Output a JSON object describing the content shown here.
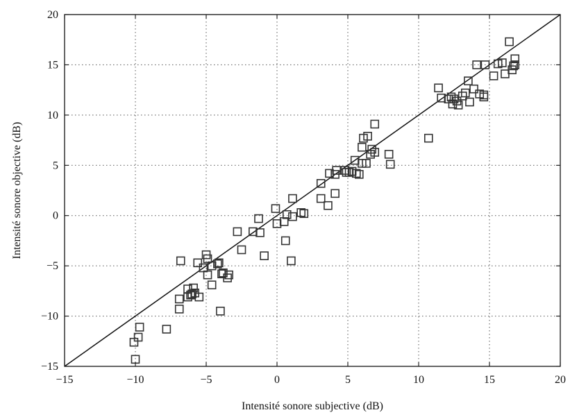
{
  "chart_data": {
    "type": "scatter",
    "title": "",
    "xlabel": "Intensité sonore subjective (dB)",
    "ylabel": "Intensité sonore objective (dB)",
    "xlim": [
      -15,
      20
    ],
    "ylim": [
      -15,
      20
    ],
    "xticks": [
      -15,
      -10,
      -5,
      0,
      5,
      10,
      15,
      20
    ],
    "yticks": [
      -15,
      -10,
      -5,
      0,
      5,
      10,
      15,
      20
    ],
    "xtick_labels": [
      "−15",
      "−10",
      "−5",
      "0",
      "5",
      "10",
      "15",
      "20"
    ],
    "ytick_labels": [
      "−15",
      "−10",
      "−5",
      "0",
      "5",
      "10",
      "15",
      "20"
    ],
    "grid": true,
    "marker": "square",
    "reference_line": {
      "from": [
        -15,
        -15
      ],
      "to": [
        20,
        20
      ]
    },
    "points": [
      [
        -10.0,
        -14.3
      ],
      [
        -10.1,
        -12.6
      ],
      [
        -9.7,
        -11.1
      ],
      [
        -9.8,
        -12.1
      ],
      [
        -7.8,
        -11.3
      ],
      [
        -6.9,
        -9.3
      ],
      [
        -6.9,
        -8.3
      ],
      [
        -6.8,
        -4.5
      ],
      [
        -6.3,
        -7.3
      ],
      [
        -6.3,
        -8.1
      ],
      [
        -6.1,
        -7.9
      ],
      [
        -6.0,
        -7.8
      ],
      [
        -5.9,
        -7.2
      ],
      [
        -5.8,
        -7.7
      ],
      [
        -5.5,
        -8.1
      ],
      [
        -5.6,
        -4.7
      ],
      [
        -5.2,
        -5.2
      ],
      [
        -5.0,
        -3.9
      ],
      [
        -4.9,
        -4.3
      ],
      [
        -4.9,
        -5.9
      ],
      [
        -4.6,
        -6.9
      ],
      [
        -4.6,
        -5.0
      ],
      [
        -4.2,
        -4.8
      ],
      [
        -4.1,
        -4.7
      ],
      [
        -3.9,
        -5.8
      ],
      [
        -3.8,
        -5.7
      ],
      [
        -4.0,
        -9.5
      ],
      [
        -3.5,
        -6.2
      ],
      [
        -3.4,
        -5.9
      ],
      [
        -2.8,
        -1.6
      ],
      [
        -2.5,
        -3.4
      ],
      [
        -1.7,
        -1.6
      ],
      [
        -1.3,
        -0.3
      ],
      [
        -1.2,
        -1.7
      ],
      [
        -0.9,
        -4.0
      ],
      [
        -0.1,
        0.7
      ],
      [
        0.0,
        -0.8
      ],
      [
        0.5,
        -0.6
      ],
      [
        0.6,
        -2.5
      ],
      [
        0.7,
        0.1
      ],
      [
        1.0,
        -4.5
      ],
      [
        1.1,
        1.7
      ],
      [
        1.1,
        -0.1
      ],
      [
        1.7,
        0.3
      ],
      [
        1.9,
        0.2
      ],
      [
        3.1,
        1.7
      ],
      [
        3.1,
        3.2
      ],
      [
        3.6,
        1.0
      ],
      [
        3.7,
        4.2
      ],
      [
        4.1,
        2.2
      ],
      [
        4.1,
        4.1
      ],
      [
        4.2,
        4.5
      ],
      [
        4.8,
        4.5
      ],
      [
        4.9,
        4.3
      ],
      [
        5.1,
        4.3
      ],
      [
        5.3,
        4.4
      ],
      [
        5.5,
        5.5
      ],
      [
        5.6,
        4.2
      ],
      [
        5.8,
        4.1
      ],
      [
        6.0,
        6.8
      ],
      [
        6.0,
        5.2
      ],
      [
        6.1,
        7.7
      ],
      [
        6.3,
        5.2
      ],
      [
        6.4,
        7.9
      ],
      [
        6.6,
        6.1
      ],
      [
        6.7,
        6.6
      ],
      [
        6.9,
        6.3
      ],
      [
        6.9,
        9.1
      ],
      [
        7.9,
        6.1
      ],
      [
        8.0,
        5.1
      ],
      [
        10.7,
        7.7
      ],
      [
        11.4,
        12.7
      ],
      [
        11.6,
        11.7
      ],
      [
        12.1,
        11.6
      ],
      [
        12.3,
        11.8
      ],
      [
        12.4,
        11.1
      ],
      [
        12.5,
        11.6
      ],
      [
        12.7,
        11.4
      ],
      [
        12.8,
        11.0
      ],
      [
        13.1,
        11.9
      ],
      [
        13.3,
        12.2
      ],
      [
        13.5,
        13.4
      ],
      [
        13.6,
        11.3
      ],
      [
        13.9,
        12.6
      ],
      [
        14.1,
        15.0
      ],
      [
        14.3,
        12.1
      ],
      [
        14.6,
        12.0
      ],
      [
        14.6,
        11.8
      ],
      [
        14.7,
        15.0
      ],
      [
        15.3,
        13.9
      ],
      [
        15.6,
        15.1
      ],
      [
        15.9,
        15.2
      ],
      [
        16.1,
        14.1
      ],
      [
        16.4,
        17.3
      ],
      [
        16.6,
        14.5
      ],
      [
        16.7,
        14.9
      ],
      [
        16.8,
        15.6
      ],
      [
        16.8,
        15.0
      ]
    ]
  }
}
